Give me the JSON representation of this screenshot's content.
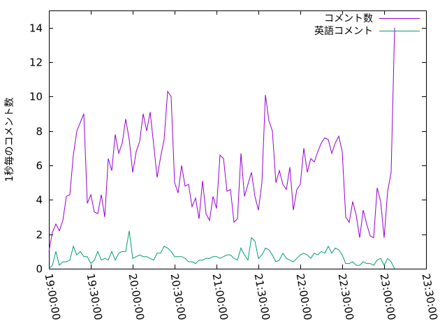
{
  "chart_data": {
    "type": "line",
    "title": "",
    "xlabel": "",
    "ylabel": "1秒毎のコメント数",
    "xlim": [
      "19:00:00",
      "23:30:00"
    ],
    "ylim": [
      0,
      15
    ],
    "x_ticks": [
      "19:00:00",
      "19:30:00",
      "20:00:00",
      "20:30:00",
      "21:00:00",
      "21:30:00",
      "22:00:00",
      "22:30:00",
      "23:00:00",
      "23:30:00"
    ],
    "y_ticks": [
      0,
      2,
      4,
      6,
      8,
      10,
      12,
      14
    ],
    "grid": false,
    "legend_position": "top-right",
    "x_interval_minutes": 2.5,
    "series": [
      {
        "name": "コメント数",
        "color": "#9400d3",
        "values": [
          1.0,
          2.1,
          2.6,
          2.2,
          2.8,
          4.2,
          4.3,
          6.6,
          8.0,
          8.5,
          9.0,
          3.8,
          4.3,
          3.3,
          3.2,
          4.3,
          3.0,
          6.4,
          5.7,
          7.8,
          6.7,
          7.3,
          8.7,
          7.5,
          5.6,
          6.8,
          7.4,
          9.0,
          8.0,
          9.1,
          7.2,
          5.3,
          6.5,
          7.5,
          10.3,
          10.0,
          5.0,
          4.4,
          6.0,
          4.8,
          4.9,
          3.6,
          4.1,
          2.9,
          5.1,
          3.2,
          2.8,
          4.2,
          3.5,
          6.6,
          6.4,
          4.5,
          4.6,
          2.7,
          2.9,
          6.7,
          4.2,
          4.9,
          5.6,
          4.2,
          3.4,
          5.0,
          10.1,
          8.6,
          8.0,
          5.0,
          5.7,
          4.9,
          4.6,
          5.9,
          3.4,
          4.6,
          4.9,
          7.0,
          5.6,
          6.4,
          6.2,
          6.8,
          7.3,
          7.6,
          7.5,
          6.7,
          7.3,
          7.7,
          6.8,
          3.0,
          2.7,
          3.9,
          3.1,
          1.8,
          3.4,
          2.6,
          1.9,
          1.8,
          4.7,
          3.9,
          1.8,
          4.5,
          5.6,
          14.0
        ]
      },
      {
        "name": "英語コメント",
        "color": "#009e73",
        "values": [
          0.0,
          0.2,
          1.0,
          0.2,
          0.4,
          0.4,
          0.5,
          1.3,
          0.8,
          1.0,
          0.7,
          0.7,
          0.3,
          0.5,
          1.0,
          0.5,
          0.6,
          0.5,
          1.0,
          0.5,
          0.9,
          1.0,
          1.0,
          2.2,
          0.6,
          0.7,
          0.8,
          0.7,
          0.7,
          0.6,
          0.5,
          0.9,
          0.9,
          1.3,
          1.2,
          1.0,
          0.7,
          0.7,
          0.7,
          0.6,
          0.4,
          0.4,
          0.3,
          0.5,
          0.5,
          0.6,
          0.6,
          0.7,
          0.7,
          0.6,
          0.7,
          0.8,
          0.8,
          0.6,
          0.5,
          1.2,
          0.8,
          0.5,
          1.8,
          1.6,
          0.6,
          0.8,
          1.2,
          1.1,
          0.8,
          0.4,
          0.5,
          0.9,
          0.6,
          0.5,
          0.4,
          0.6,
          0.8,
          0.9,
          0.8,
          0.6,
          0.9,
          0.8,
          1.0,
          0.9,
          1.3,
          0.9,
          1.2,
          1.1,
          0.8,
          0.3,
          0.3,
          0.4,
          0.2,
          0.2,
          0.4,
          0.3,
          0.3,
          0.2,
          0.5,
          0.6,
          0.2,
          0.6,
          0.4,
          0.0
        ]
      }
    ]
  }
}
